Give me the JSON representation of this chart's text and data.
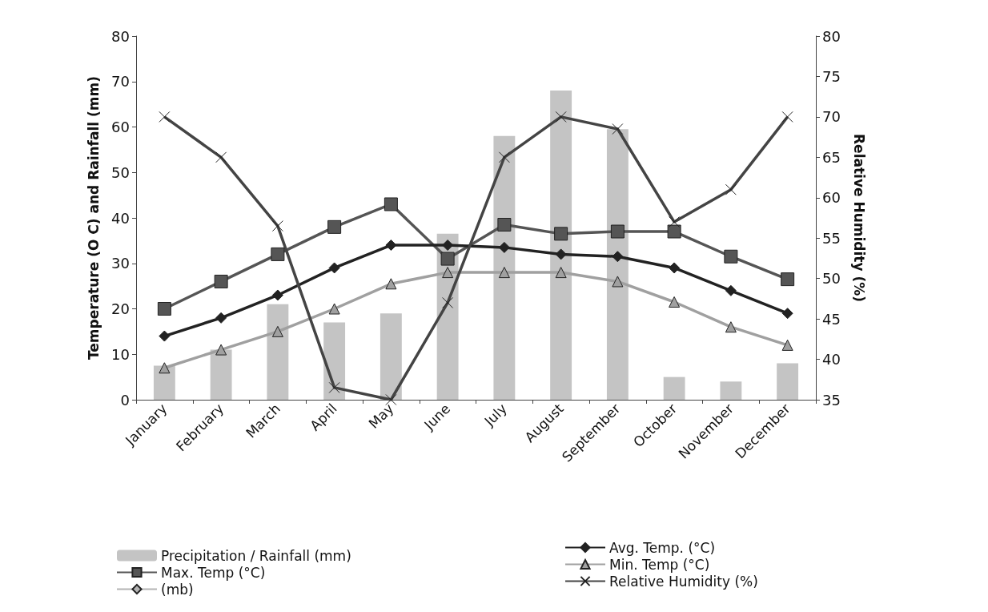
{
  "chart_data": {
    "type": "bar",
    "categories": [
      "January",
      "February",
      "March",
      "April",
      "May",
      "June",
      "July",
      "August",
      "September",
      "October",
      "November",
      "December"
    ],
    "ylabel": "Temperature (O C) and Rainfall (mm)",
    "y2label": "Relative Humidity (%)",
    "ylim": [
      0,
      80
    ],
    "yticks": [
      0,
      10,
      20,
      30,
      40,
      50,
      60,
      70,
      80
    ],
    "y2lim": [
      35,
      80
    ],
    "y2ticks": [
      35,
      40,
      45,
      50,
      55,
      60,
      65,
      70,
      75,
      80
    ],
    "grid": false,
    "legend": "bottom",
    "series": [
      {
        "name": "Precipitation / Rainfall (mm)",
        "color": "#c4c4c4",
        "values": [
          7.5,
          11,
          21,
          17,
          19,
          36.5,
          58,
          68,
          59.5,
          5,
          4,
          8
        ]
      },
      {
        "name": "Max. Temp (°C)",
        "type": "line",
        "marker": "square",
        "color": "#555555",
        "values": [
          20,
          26,
          32,
          38,
          43,
          31,
          38.5,
          36.5,
          37,
          37,
          31.5,
          26.5
        ]
      },
      {
        "name": "(mb)",
        "type": "line",
        "marker": "diamond",
        "color": "#b4b4b4",
        "values": [
          null,
          null,
          null,
          null,
          null,
          null,
          null,
          null,
          null,
          null,
          null,
          null
        ]
      },
      {
        "name": "Avg. Temp. (°C)",
        "type": "line",
        "marker": "diamond",
        "color": "#222222",
        "values": [
          14,
          18,
          23,
          29,
          34,
          34,
          33.5,
          32,
          31.5,
          29,
          24,
          19
        ]
      },
      {
        "name": "Min. Temp (°C)",
        "type": "line",
        "marker": "triangle",
        "color": "#a0a0a0",
        "values": [
          7,
          11,
          15,
          20,
          25.5,
          28,
          28,
          28,
          26,
          21.5,
          16,
          12
        ]
      },
      {
        "name": "Relative Humidity (%)",
        "type": "line",
        "marker": "cross",
        "axis": "y2",
        "color": "#444444",
        "values": [
          70,
          65,
          56.5,
          36.5,
          35,
          47,
          65,
          70,
          68.5,
          57,
          61,
          70
        ]
      }
    ]
  }
}
